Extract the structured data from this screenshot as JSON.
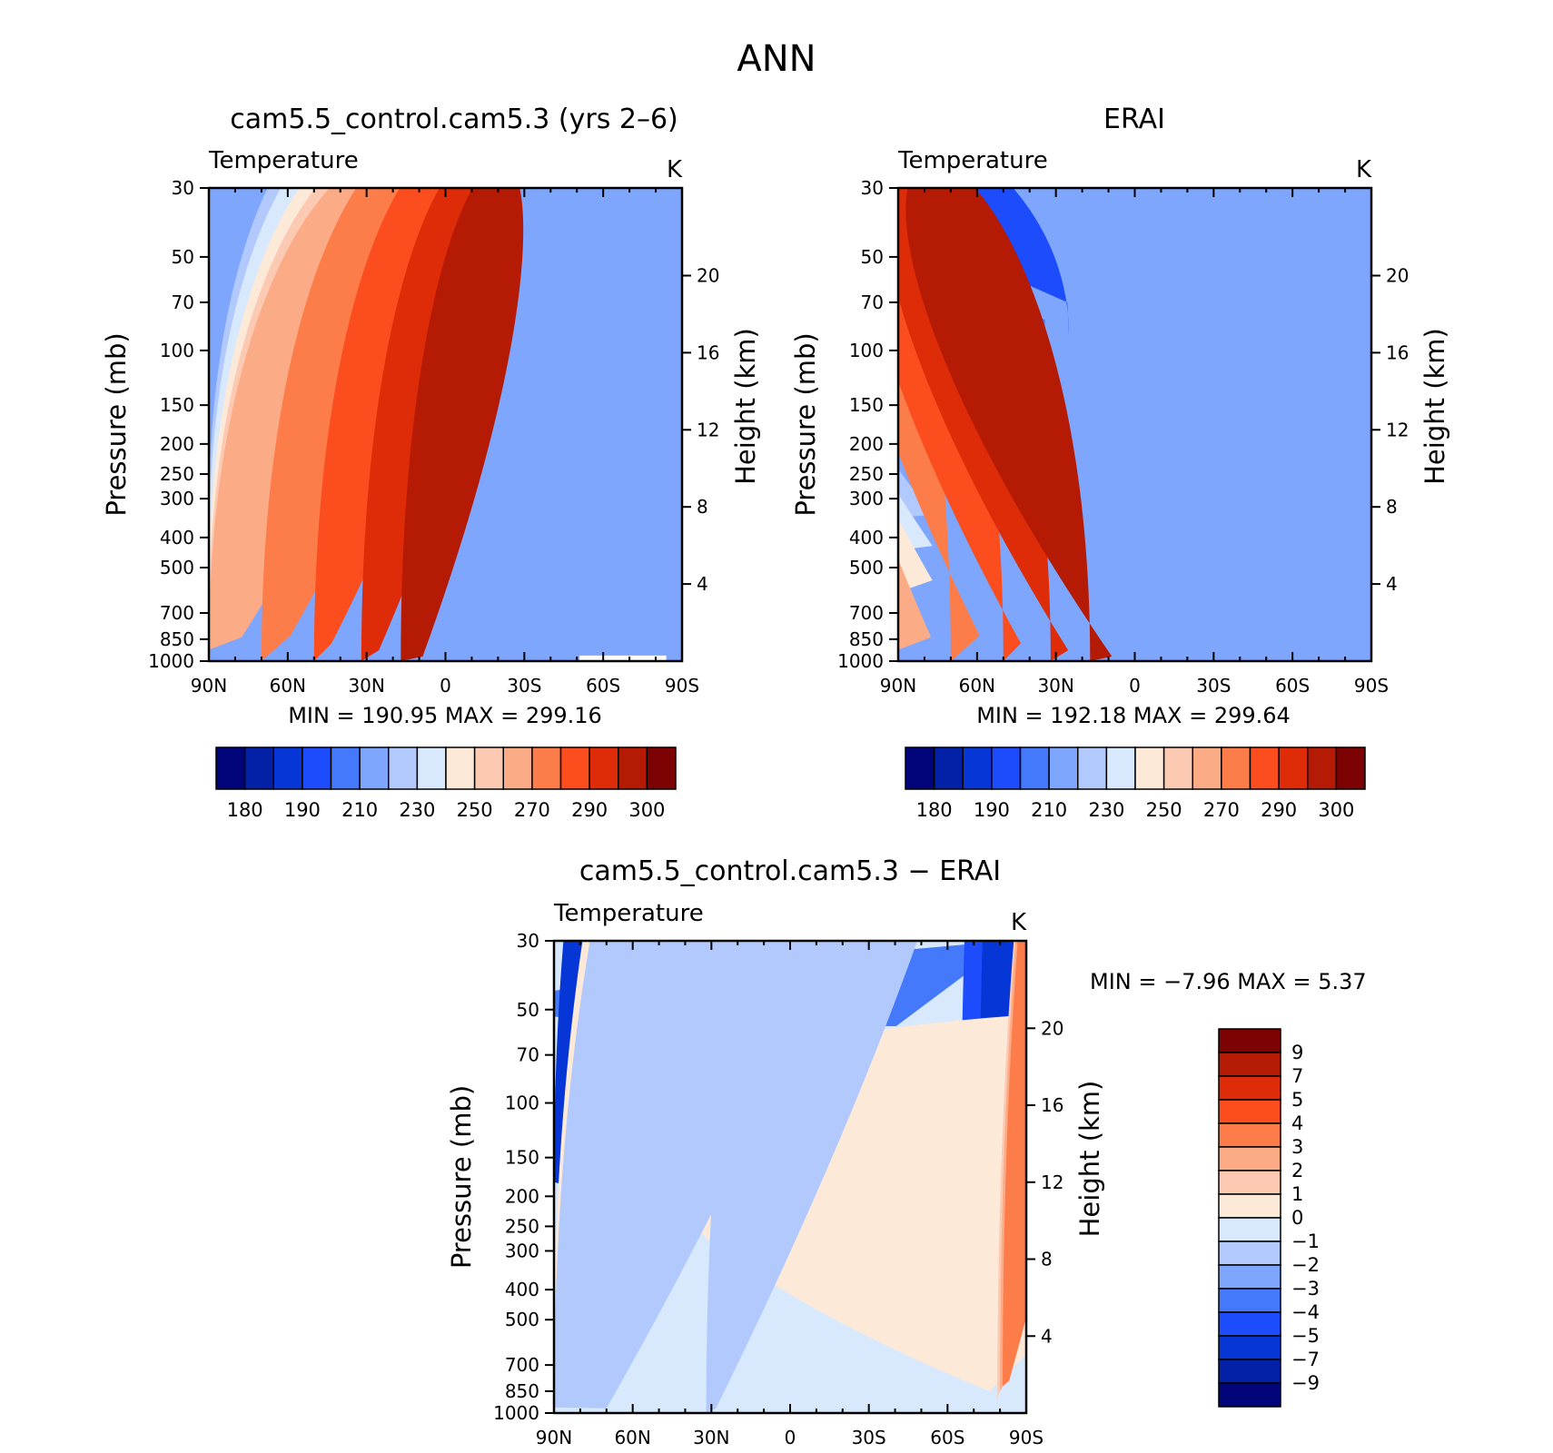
{
  "figure_title": "ANN",
  "colors": {
    "t_scale": [
      "#020579",
      "#0321a6",
      "#0636d6",
      "#1c4cfb",
      "#4479fb",
      "#7ea6fc",
      "#b2c9fd",
      "#d8e8fd",
      "#fde9d8",
      "#fccab2",
      "#fcab87",
      "#fc7d4a",
      "#fb4d1e",
      "#de2b08",
      "#b51a05",
      "#7d0204"
    ],
    "d_scale": [
      "#020579",
      "#0321a6",
      "#0636d6",
      "#1c4cfb",
      "#4479fb",
      "#7ea6fc",
      "#b2c9fd",
      "#d8e8fd",
      "#fde9d8",
      "#fccab2",
      "#fcab87",
      "#fc7d4a",
      "#fb4d1e",
      "#de2b08",
      "#b51a05",
      "#7d0204"
    ]
  },
  "panels": [
    {
      "title": "cam5.5_control.cam5.3 (yrs 2–6)",
      "variable": "Temperature",
      "units": "K",
      "ylabel": "Pressure (mb)",
      "y2label": "Height (km)",
      "min_max": "MIN =  190.95   MAX =  299.16",
      "colorbar_labels": [
        "180",
        "190",
        "210",
        "230",
        "250",
        "270",
        "290",
        "300"
      ]
    },
    {
      "title": "ERAI",
      "variable": "Temperature",
      "units": "K",
      "ylabel": "Pressure (mb)",
      "y2label": "Height (km)",
      "min_max": "MIN =  192.18   MAX =  299.64",
      "colorbar_labels": [
        "180",
        "190",
        "210",
        "230",
        "250",
        "270",
        "290",
        "300"
      ]
    },
    {
      "title": "cam5.5_control.cam5.3 − ERAI",
      "variable": "Temperature",
      "units": "K",
      "ylabel": "Pressure (mb)",
      "y2label": "Height (km)",
      "min_max": "MIN =  −7.96   MAX =    5.37",
      "colorbar_labels": [
        "9",
        "7",
        "5",
        "4",
        "3",
        "2",
        "1",
        "0",
        "−1",
        "−2",
        "−3",
        "−4",
        "−5",
        "−7",
        "−9"
      ]
    }
  ],
  "chart_data": [
    {
      "type": "heatmap",
      "title": "cam5.5_control.cam5.3 (yrs 2–6)",
      "subtitle": "Temperature",
      "units": "K",
      "ylabel": "Pressure (mb)",
      "y2label": "Height (km)",
      "x_tick_labels": [
        "90N",
        "60N",
        "30N",
        "0",
        "30S",
        "60S",
        "90S"
      ],
      "x_ticks": [
        -90,
        -60,
        -30,
        0,
        30,
        60,
        90
      ],
      "xlim": [
        -90,
        90
      ],
      "y_tick_labels": [
        "30",
        "50",
        "70",
        "100",
        "150",
        "200",
        "250",
        "300",
        "400",
        "500",
        "700",
        "850",
        "1000"
      ],
      "y_ticks": [
        30,
        50,
        70,
        100,
        150,
        200,
        250,
        300,
        400,
        500,
        700,
        850,
        1000
      ],
      "ylim": [
        1000,
        30
      ],
      "y_scale": "log",
      "y2_tick_labels": [
        "20",
        "16",
        "12",
        "8",
        "4"
      ],
      "y2_ticks": [
        20,
        16,
        12,
        8,
        4
      ],
      "min": 190.95,
      "max": 299.16,
      "levels": [
        180,
        185,
        190,
        200,
        210,
        220,
        230,
        240,
        250,
        260,
        270,
        280,
        290,
        295,
        300
      ]
    },
    {
      "type": "heatmap",
      "title": "ERAI",
      "subtitle": "Temperature",
      "units": "K",
      "ylabel": "Pressure (mb)",
      "y2label": "Height (km)",
      "x_tick_labels": [
        "90N",
        "60N",
        "30N",
        "0",
        "30S",
        "60S",
        "90S"
      ],
      "x_ticks": [
        -90,
        -60,
        -30,
        0,
        30,
        60,
        90
      ],
      "xlim": [
        -90,
        90
      ],
      "y_tick_labels": [
        "30",
        "50",
        "70",
        "100",
        "150",
        "200",
        "250",
        "300",
        "400",
        "500",
        "700",
        "850",
        "1000"
      ],
      "y_ticks": [
        30,
        50,
        70,
        100,
        150,
        200,
        250,
        300,
        400,
        500,
        700,
        850,
        1000
      ],
      "ylim": [
        1000,
        30
      ],
      "y_scale": "log",
      "y2_tick_labels": [
        "20",
        "16",
        "12",
        "8",
        "4"
      ],
      "y2_ticks": [
        20,
        16,
        12,
        8,
        4
      ],
      "min": 192.18,
      "max": 299.64,
      "levels": [
        180,
        185,
        190,
        200,
        210,
        220,
        230,
        240,
        250,
        260,
        270,
        280,
        290,
        295,
        300
      ]
    },
    {
      "type": "heatmap",
      "title": "cam5.5_control.cam5.3 − ERAI",
      "subtitle": "Temperature",
      "units": "K",
      "ylabel": "Pressure (mb)",
      "y2label": "Height (km)",
      "x_tick_labels": [
        "90N",
        "60N",
        "30N",
        "0",
        "30S",
        "60S",
        "90S"
      ],
      "x_ticks": [
        -90,
        -60,
        -30,
        0,
        30,
        60,
        90
      ],
      "xlim": [
        -90,
        90
      ],
      "y_tick_labels": [
        "30",
        "50",
        "70",
        "100",
        "150",
        "200",
        "250",
        "300",
        "400",
        "500",
        "700",
        "850",
        "1000"
      ],
      "y_ticks": [
        30,
        50,
        70,
        100,
        150,
        200,
        250,
        300,
        400,
        500,
        700,
        850,
        1000
      ],
      "ylim": [
        1000,
        30
      ],
      "y_scale": "log",
      "y2_tick_labels": [
        "20",
        "16",
        "12",
        "8",
        "4"
      ],
      "y2_ticks": [
        20,
        16,
        12,
        8,
        4
      ],
      "min": -7.96,
      "max": 5.37,
      "levels": [
        -9,
        -7,
        -5,
        -4,
        -3,
        -2,
        -1,
        0,
        1,
        2,
        3,
        4,
        5,
        7,
        9
      ]
    }
  ]
}
